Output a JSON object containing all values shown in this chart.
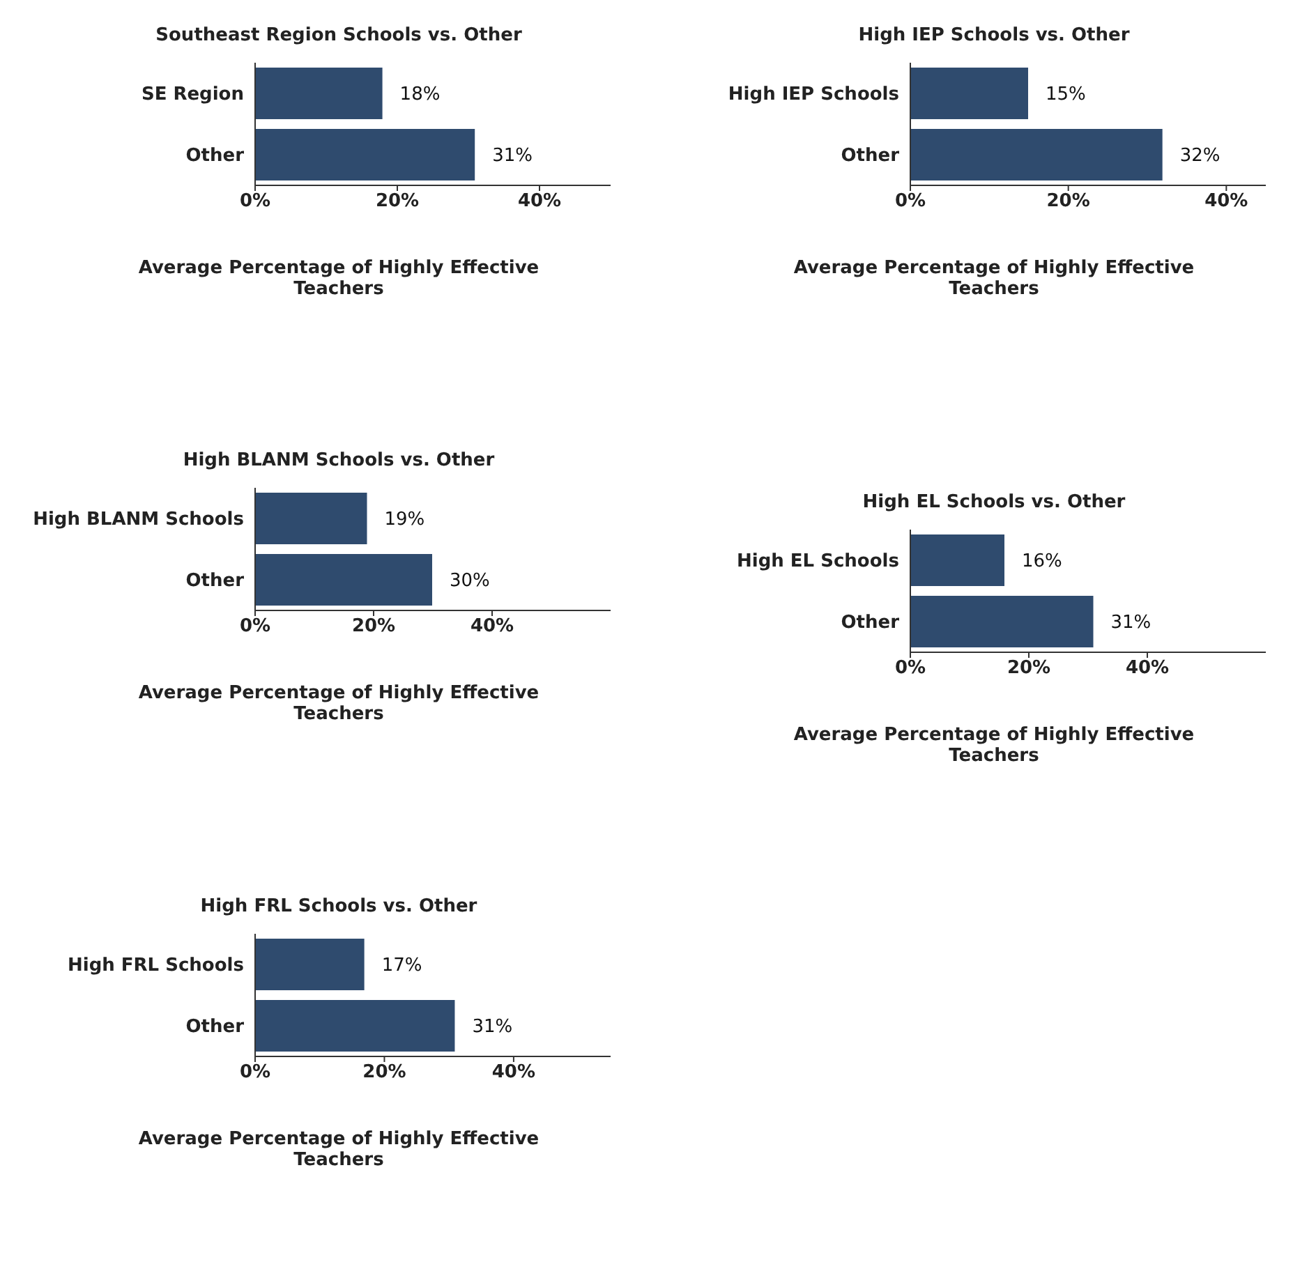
{
  "chart_data": [
    {
      "type": "bar",
      "orientation": "horizontal",
      "title": "Southeast Region Schools vs. Other",
      "xlabel": "Average Percentage of Highly Effective Teachers",
      "categories": [
        "SE Region",
        "Other"
      ],
      "values": [
        18,
        31
      ],
      "value_labels": [
        "18%",
        "31%"
      ],
      "color": "#2f4b6e",
      "xlim": [
        0,
        50
      ],
      "xticks": [
        {
          "value": 0,
          "label": "0%"
        },
        {
          "value": 20,
          "label": "20%"
        },
        {
          "value": 40,
          "label": "40%"
        }
      ],
      "grid": false,
      "legend": false
    },
    {
      "type": "bar",
      "orientation": "horizontal",
      "title": "High IEP Schools vs. Other",
      "xlabel": "Average Percentage of Highly Effective Teachers",
      "categories": [
        "High IEP Schools",
        "Other"
      ],
      "values": [
        15,
        32
      ],
      "value_labels": [
        "15%",
        "32%"
      ],
      "color": "#2f4b6e",
      "xlim": [
        0,
        45
      ],
      "xticks": [
        {
          "value": 0,
          "label": "0%"
        },
        {
          "value": 20,
          "label": "20%"
        },
        {
          "value": 40,
          "label": "40%"
        }
      ],
      "grid": false,
      "legend": false
    },
    {
      "type": "bar",
      "orientation": "horizontal",
      "title": "High BLANM Schools vs. Other",
      "xlabel": "Average Percentage of Highly Effective Teachers",
      "categories": [
        "High BLANM Schools",
        "Other"
      ],
      "values": [
        19,
        30
      ],
      "value_labels": [
        "19%",
        "30%"
      ],
      "color": "#2f4b6e",
      "xlim": [
        0,
        60
      ],
      "xticks": [
        {
          "value": 0,
          "label": "0%"
        },
        {
          "value": 20,
          "label": "20%"
        },
        {
          "value": 40,
          "label": "40%"
        }
      ],
      "grid": false,
      "legend": false
    },
    {
      "type": "bar",
      "orientation": "horizontal",
      "title": "High EL Schools vs. Other",
      "xlabel": "Average Percentage of Highly Effective Teachers",
      "categories": [
        "High EL Schools",
        "Other"
      ],
      "values": [
        16,
        31
      ],
      "value_labels": [
        "16%",
        "31%"
      ],
      "color": "#2f4b6e",
      "xlim": [
        0,
        60
      ],
      "xticks": [
        {
          "value": 0,
          "label": "0%"
        },
        {
          "value": 20,
          "label": "20%"
        },
        {
          "value": 40,
          "label": "40%"
        }
      ],
      "grid": false,
      "legend": false
    },
    {
      "type": "bar",
      "orientation": "horizontal",
      "title": "High FRL Schools vs. Other",
      "xlabel": "Average Percentage of Highly Effective Teachers",
      "categories": [
        "High FRL Schools",
        "Other"
      ],
      "values": [
        17,
        31
      ],
      "value_labels": [
        "17%",
        "31%"
      ],
      "color": "#2f4b6e",
      "xlim": [
        0,
        55
      ],
      "xticks": [
        {
          "value": 0,
          "label": "0%"
        },
        {
          "value": 20,
          "label": "20%"
        },
        {
          "value": 40,
          "label": "40%"
        }
      ],
      "grid": false,
      "legend": false
    }
  ]
}
